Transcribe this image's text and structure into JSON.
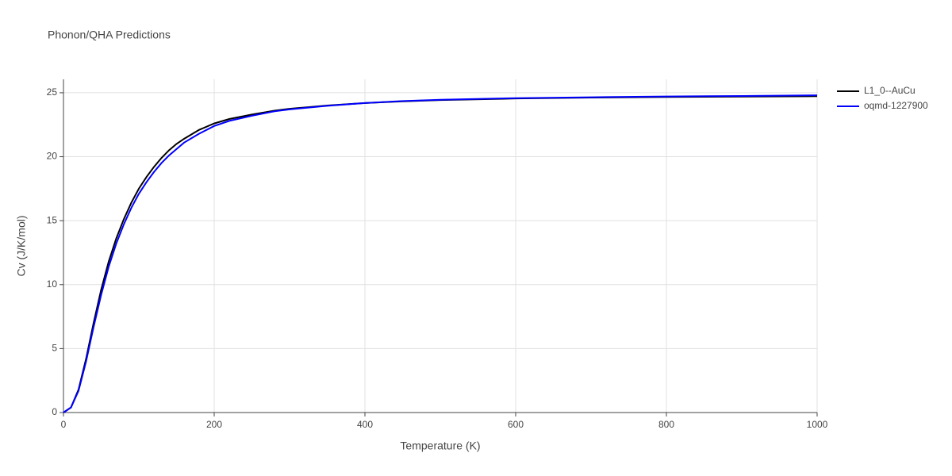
{
  "chart_data": {
    "type": "line",
    "title": "Phonon/QHA Predictions",
    "x_label": "Temperature (K)",
    "y_label": "Cv (J/K/mol)",
    "x": [
      0,
      10,
      20,
      30,
      40,
      50,
      60,
      70,
      80,
      90,
      100,
      110,
      120,
      130,
      140,
      150,
      160,
      180,
      200,
      220,
      250,
      280,
      300,
      350,
      400,
      450,
      500,
      600,
      700,
      800,
      900,
      1000
    ],
    "series": [
      {
        "name": "L1_0--AuCu",
        "color": "#000000",
        "values": [
          0,
          0.4,
          1.8,
          4.2,
          7.0,
          9.6,
          11.8,
          13.6,
          15.1,
          16.4,
          17.5,
          18.4,
          19.2,
          19.9,
          20.5,
          21.0,
          21.4,
          22.1,
          22.6,
          22.95,
          23.3,
          23.6,
          23.75,
          24.0,
          24.2,
          24.33,
          24.43,
          24.55,
          24.62,
          24.67,
          24.7,
          24.73
        ]
      },
      {
        "name": "oqmd-1227900",
        "color": "#0000ff",
        "values": [
          0,
          0.4,
          1.7,
          4.0,
          6.7,
          9.2,
          11.4,
          13.2,
          14.7,
          16.0,
          17.1,
          18.0,
          18.8,
          19.5,
          20.1,
          20.6,
          21.1,
          21.8,
          22.4,
          22.8,
          23.2,
          23.55,
          23.7,
          23.98,
          24.2,
          24.35,
          24.45,
          24.58,
          24.65,
          24.71,
          24.75,
          24.8
        ]
      }
    ],
    "xlim": [
      0,
      1000
    ],
    "xticks": [
      0,
      200,
      400,
      600,
      800,
      1000
    ],
    "ylim": [
      0,
      26.05
    ],
    "yticks": [
      0,
      5,
      10,
      15,
      20,
      25
    ],
    "grid": true,
    "legend": "top-right"
  }
}
